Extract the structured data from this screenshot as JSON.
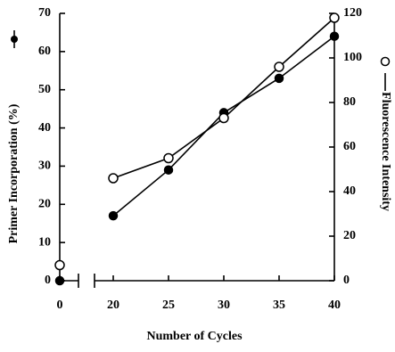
{
  "chart_data": {
    "type": "line",
    "xlabel": "Number of Cycles",
    "ylabel": "Primer Incorporation (%)",
    "y2label": "Fluorescence Intensity",
    "x": [
      0,
      20,
      25,
      30,
      35,
      40
    ],
    "xlim": [
      0,
      40
    ],
    "xticks": [
      0,
      20,
      25,
      30,
      35,
      40
    ],
    "x_break": true,
    "ylim": [
      0,
      70
    ],
    "yticks": [
      0,
      10,
      20,
      30,
      40,
      50,
      60,
      70
    ],
    "y2lim": [
      0,
      120
    ],
    "y2ticks": [
      0,
      20,
      40,
      60,
      80,
      100,
      120
    ],
    "series": [
      {
        "color": "#000000",
        "marker": "filled",
        "values": [
          0,
          17,
          29,
          44,
          53,
          64
        ]
      },
      {
        "color": "#000000",
        "marker": "open",
        "axis": "y2",
        "values": [
          7,
          46,
          55,
          73,
          96,
          118
        ]
      }
    ]
  }
}
